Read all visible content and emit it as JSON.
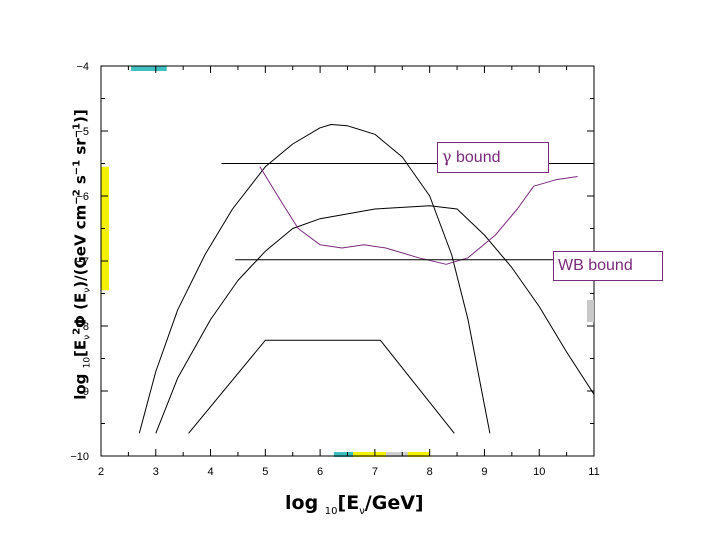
{
  "chart_data": {
    "type": "line",
    "xlabel": "log 10[Eν/GeV]",
    "ylabel": "log 10[E2νΦ(Eν)/(GeV cm−2 s−1 sr−1)]",
    "xlim": [
      2,
      11
    ],
    "ylim": [
      -10,
      -4
    ],
    "x_ticks": [
      2,
      3,
      4,
      5,
      6,
      7,
      8,
      9,
      10,
      11
    ],
    "x_tick_labels": [
      "2",
      "3",
      "4",
      "5",
      "6",
      "7",
      "8",
      "9",
      "10",
      "11"
    ],
    "y_ticks": [
      -10,
      -9,
      -8,
      -7,
      -6,
      -5,
      -4
    ],
    "y_tick_labels": [
      "−10",
      "−9",
      "−8",
      "−7",
      "−6",
      "−5",
      "−4"
    ],
    "grid": false,
    "series": [
      {
        "color": "#000000",
        "points": [
          [
            2.7,
            -9.65
          ],
          [
            3.0,
            -8.7
          ],
          [
            3.4,
            -7.75
          ],
          [
            3.9,
            -6.9
          ],
          [
            4.4,
            -6.2
          ],
          [
            5.0,
            -5.55
          ],
          [
            5.5,
            -5.2
          ],
          [
            6.0,
            -4.95
          ],
          [
            6.2,
            -4.9
          ],
          [
            6.5,
            -4.92
          ],
          [
            7.0,
            -5.05
          ],
          [
            7.5,
            -5.4
          ],
          [
            8.0,
            -6.0
          ],
          [
            8.4,
            -6.9
          ],
          [
            8.7,
            -7.9
          ],
          [
            8.95,
            -9.0
          ],
          [
            9.1,
            -9.65
          ]
        ]
      },
      {
        "color": "#000000",
        "points": [
          [
            3.0,
            -9.65
          ],
          [
            3.4,
            -8.8
          ],
          [
            4.0,
            -7.9
          ],
          [
            4.5,
            -7.3
          ],
          [
            5.0,
            -6.85
          ],
          [
            5.5,
            -6.5
          ],
          [
            6.0,
            -6.35
          ],
          [
            7.0,
            -6.2
          ],
          [
            8.0,
            -6.15
          ],
          [
            8.5,
            -6.2
          ],
          [
            9.0,
            -6.6
          ],
          [
            9.5,
            -7.1
          ],
          [
            10.0,
            -7.7
          ],
          [
            10.5,
            -8.4
          ],
          [
            11.0,
            -9.05
          ]
        ]
      },
      {
        "color": "#000000",
        "points": [
          [
            3.6,
            -9.65
          ],
          [
            5.0,
            -8.22
          ],
          [
            7.1,
            -8.22
          ],
          [
            8.45,
            -9.65
          ]
        ]
      },
      {
        "color": "#7a2a7a",
        "points": [
          [
            4.9,
            -5.55
          ],
          [
            5.3,
            -6.1
          ],
          [
            5.6,
            -6.5
          ],
          [
            6.0,
            -6.75
          ],
          [
            6.4,
            -6.8
          ],
          [
            6.8,
            -6.75
          ],
          [
            7.2,
            -6.8
          ],
          [
            7.8,
            -6.95
          ],
          [
            8.3,
            -7.05
          ],
          [
            8.7,
            -6.95
          ],
          [
            9.2,
            -6.6
          ],
          [
            9.6,
            -6.2
          ],
          [
            9.9,
            -5.85
          ],
          [
            10.3,
            -5.75
          ],
          [
            10.7,
            -5.7
          ]
        ]
      },
      {
        "color": "#000000",
        "points": [
          [
            4.2,
            -5.5
          ],
          [
            11.0,
            -5.5
          ]
        ]
      },
      {
        "color": "#000000",
        "points": [
          [
            4.45,
            -6.98
          ],
          [
            11.0,
            -6.98
          ]
        ]
      }
    ],
    "annotations": [
      {
        "symbol": "γ",
        "text": " bound"
      },
      {
        "text": "WB bound"
      }
    ],
    "colored_bars": [
      {
        "color": "#f2f200",
        "axis": "y",
        "range": [
          -7.45,
          -5.55
        ]
      },
      {
        "color": "#3fbfbf",
        "axis": "x",
        "range": [
          2.55,
          3.2
        ]
      },
      {
        "color": "#f2f200",
        "axis": "x",
        "range": [
          6.4,
          8.0
        ]
      },
      {
        "color": "#3fbfbf",
        "axis": "x",
        "range": [
          6.25,
          6.6
        ]
      },
      {
        "color": "#d0d0d0",
        "axis": "x",
        "range": [
          7.2,
          7.6
        ]
      }
    ]
  }
}
